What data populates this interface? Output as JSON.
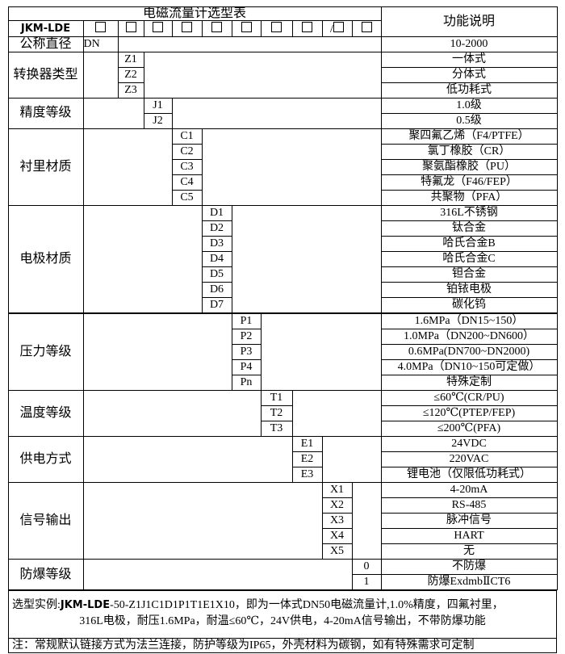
{
  "header": {
    "title": "电磁流量计选型表",
    "function_header": "功能说明",
    "model_prefix": "JKM-LDE",
    "slots": [
      "□",
      "□",
      "□",
      "□",
      "□",
      "□",
      "□",
      "□",
      "/□",
      "□"
    ]
  },
  "groups": [
    {
      "label": "公称直径",
      "col": 1,
      "rows": [
        {
          "code": "DN",
          "desc": "10-2000"
        }
      ]
    },
    {
      "label": "转换器类型",
      "col": 2,
      "rows": [
        {
          "code": "Z1",
          "desc": "一体式"
        },
        {
          "code": "Z2",
          "desc": "分体式"
        },
        {
          "code": "Z3",
          "desc": "低功耗式"
        }
      ]
    },
    {
      "label": "精度等级",
      "col": 3,
      "rows": [
        {
          "code": "J1",
          "desc": "1.0级"
        },
        {
          "code": "J2",
          "desc": "0.5级"
        }
      ]
    },
    {
      "label": "衬里材质",
      "col": 4,
      "rows": [
        {
          "code": "C1",
          "desc": "聚四氟乙烯（F4/PTFE）"
        },
        {
          "code": "C2",
          "desc": "氯丁橡胶（CR）"
        },
        {
          "code": "C3",
          "desc": "聚氨酯橡胶（PU）"
        },
        {
          "code": "C4",
          "desc": "特氟龙（F46/FEP）"
        },
        {
          "code": "C5",
          "desc": "共聚物（PFA）"
        }
      ]
    },
    {
      "label": "电极材质",
      "col": 5,
      "rows": [
        {
          "code": "D1",
          "desc": "316L不锈钢"
        },
        {
          "code": "D2",
          "desc": "钛合金"
        },
        {
          "code": "D3",
          "desc": "哈氏合金B"
        },
        {
          "code": "D4",
          "desc": "哈氏合金C"
        },
        {
          "code": "D5",
          "desc": "钽合金"
        },
        {
          "code": "D6",
          "desc": "铂铱电极"
        },
        {
          "code": "D7",
          "desc": "碳化钨"
        }
      ]
    },
    {
      "label": "压力等级",
      "col": 6,
      "rows": [
        {
          "code": "P1",
          "desc": "1.6MPa（DN15~150）"
        },
        {
          "code": "P2",
          "desc": "1.0MPa（DN200~DN600）"
        },
        {
          "code": "P3",
          "desc": "0.6MPa(DN700~DN2000)"
        },
        {
          "code": "P4",
          "desc": "4.0MPa（DN10~150可定做）"
        },
        {
          "code": "Pn",
          "desc": "特殊定制"
        }
      ]
    },
    {
      "label": "温度等级",
      "col": 7,
      "rows": [
        {
          "code": "T1",
          "desc": "≤60℃(CR/PU)"
        },
        {
          "code": "T2",
          "desc": "≤120℃(PTEP/FEP)"
        },
        {
          "code": "T3",
          "desc": "≤200℃(PFA)"
        }
      ]
    },
    {
      "label": "供电方式",
      "col": 8,
      "rows": [
        {
          "code": "E1",
          "desc": "24VDC"
        },
        {
          "code": "E2",
          "desc": "220VAC"
        },
        {
          "code": "E3",
          "desc": "锂电池（仅限低功耗式）"
        }
      ]
    },
    {
      "label": "信号输出",
      "col": 9,
      "rows": [
        {
          "code": "X1",
          "desc": "4-20mA"
        },
        {
          "code": "X2",
          "desc": "RS-485"
        },
        {
          "code": "X3",
          "desc": "脉冲信号"
        },
        {
          "code": "X4",
          "desc": "HART"
        },
        {
          "code": "X5",
          "desc": "无"
        }
      ]
    },
    {
      "label": "防爆等级",
      "col": 10,
      "rows": [
        {
          "code": "0",
          "desc": "不防爆"
        },
        {
          "code": "1",
          "desc": "防爆ExdmbⅡCT6"
        }
      ]
    }
  ],
  "example": {
    "prefix": "选型实例:",
    "brand": "JKM-LDE",
    "line1": "-50-Z1J1C1D1P1T1E1X10，即为一体式DN50电磁流量计,1.0%精度，四氟衬里，",
    "line2": "316L电极，耐压1.6MPa，耐温≤60℃，24V供电，4-20mA信号输出，不带防爆功能"
  },
  "note": "注：常规默认链接方式为法兰连接，防护等级为IP65，外壳材料为碳钢，如有特殊需求可定制"
}
